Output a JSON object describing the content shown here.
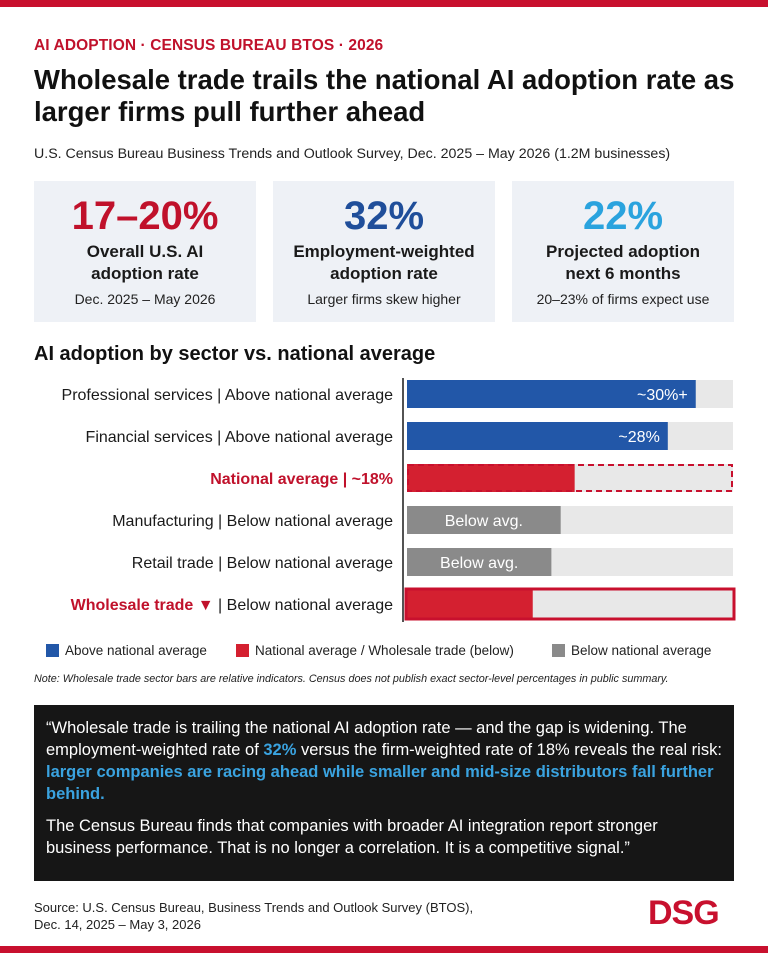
{
  "kicker": "AI ADOPTION · CENSUS BUREAU BTOS · 2026",
  "headline": "Wholesale trade trails the national AI adoption rate as larger firms pull further ahead",
  "subtitle": "U.S. Census Bureau Business Trends and Outlook Survey, Dec. 2025 – May 2026 (1.2M businesses)",
  "kpis": [
    {
      "value": "17–20%",
      "label_line1": "Overall U.S. AI",
      "label_line2": "adoption rate",
      "note": "Dec. 2025 – May 2026",
      "color": "#c0112b"
    },
    {
      "value": "32%",
      "label_line1": "Employment-weighted",
      "label_line2": "adoption rate",
      "note": "Larger firms skew higher",
      "color": "#1f4e9a"
    },
    {
      "value": "22%",
      "label_line1": "Projected adoption",
      "label_line2": "next 6 months",
      "note": "20–23% of firms expect use",
      "color": "#2aa3de"
    }
  ],
  "section_title": "AI adoption by sector vs. national average",
  "chart_data": {
    "type": "bar",
    "orientation": "horizontal",
    "xlim": [
      0,
      35
    ],
    "categories": [
      "Professional services | Above national average",
      "Financial services | Above national average",
      "National average | ~18%",
      "Manufacturing | Below national average",
      "Retail trade | Below national average",
      "Wholesale trade ▼ | Below national average"
    ],
    "labels": [
      {
        "main": "Professional services | Above national average",
        "accent": "",
        "accent_color": ""
      },
      {
        "main": "Financial services | Above national average",
        "accent": "",
        "accent_color": ""
      },
      {
        "main": "",
        "accent": "National average | ~18%",
        "accent_color": "#c0112b"
      },
      {
        "main": "Manufacturing | Below national average",
        "accent": "",
        "accent_color": ""
      },
      {
        "main": "Retail trade | Below national average",
        "accent": "",
        "accent_color": ""
      },
      {
        "main": " | Below national average",
        "accent": "Wholesale trade ▼",
        "accent_color": "#c0112b"
      }
    ],
    "values": [
      31,
      28,
      18,
      16.5,
      15.5,
      13.5
    ],
    "value_labels": [
      "~30%+",
      "~28%",
      "",
      "Below avg.",
      "Below avg.",
      ""
    ],
    "groups": [
      "above",
      "above",
      "national",
      "below",
      "below",
      "wholesale"
    ],
    "colors": {
      "above": "#2257a8",
      "national": "#d42030",
      "below": "#8a8a8a",
      "wholesale": "#d42030",
      "track": "#e8e8e8",
      "outline": "#c8102e"
    },
    "legend": [
      {
        "label": "Above national average",
        "color": "#2257a8"
      },
      {
        "label": "National average / Wholesale trade (below)",
        "color": "#d42030"
      },
      {
        "label": "Below national average",
        "color": "#8a8a8a"
      }
    ]
  },
  "footnote": "Note: Wholesale trade sector bars are relative indicators. Census does not publish exact sector-level percentages in public summary.",
  "quote": {
    "part1": "“Wholesale trade is trailing the national AI adoption rate — and the gap is widening. The employment-weighted rate of ",
    "highlight1": "32%",
    "part2": " versus the firm-weighted rate of 18% reveals the real risk: ",
    "highlight2": "larger companies are racing ahead while smaller and mid-size distributors fall further behind.",
    "paragraph2": "The Census Bureau finds that companies with broader AI integration report stronger business performance. That is no longer a correlation. It is a competitive signal.”"
  },
  "source_line1": "Source: U.S. Census Bureau, Business Trends and Outlook Survey (BTOS),",
  "source_line2": "Dec. 14, 2025 – May 3, 2026",
  "logo": "DSG"
}
